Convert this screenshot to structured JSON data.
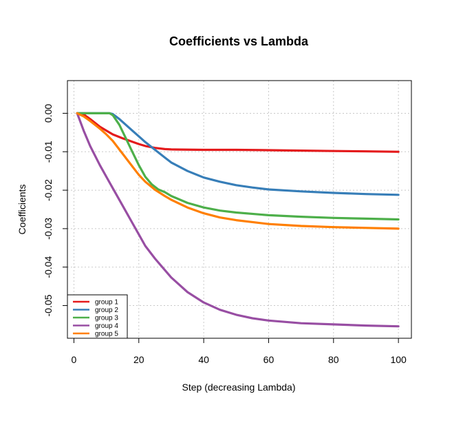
{
  "chart_data": {
    "type": "line",
    "title": "Coefficients vs Lambda",
    "xlabel": "Step (decreasing Lambda)",
    "ylabel": "Coefficients",
    "xlim": [
      -2,
      104
    ],
    "ylim": [
      -0.0585,
      0.0085
    ],
    "xticks": [
      0,
      20,
      40,
      60,
      80,
      100
    ],
    "yticks": [
      0.0,
      -0.01,
      -0.02,
      -0.03,
      -0.04,
      -0.05
    ],
    "xtick_labels": [
      "0",
      "20",
      "40",
      "60",
      "80",
      "100"
    ],
    "ytick_labels": [
      "0.00",
      "-0.01",
      "-0.02",
      "-0.03",
      "-0.04",
      "-0.05"
    ],
    "grid": true,
    "legend_position": "bottom-left",
    "series": [
      {
        "name": "group  1",
        "color": "#E41A1C",
        "x": [
          1,
          3,
          5,
          8,
          10,
          12,
          15,
          18,
          20,
          22,
          25,
          28,
          30,
          40,
          50,
          60,
          70,
          80,
          90,
          100
        ],
        "y": [
          0,
          -0.0003,
          -0.0015,
          -0.0035,
          -0.0045,
          -0.0055,
          -0.0065,
          -0.0074,
          -0.008,
          -0.0085,
          -0.009,
          -0.0093,
          -0.0094,
          -0.0095,
          -0.0095,
          -0.0096,
          -0.0097,
          -0.0098,
          -0.0099,
          -0.01
        ]
      },
      {
        "name": "group  2",
        "color": "#377EB8",
        "x": [
          1,
          11,
          12,
          14,
          16,
          18,
          20,
          22,
          25,
          28,
          30,
          35,
          40,
          45,
          50,
          55,
          60,
          70,
          80,
          90,
          100
        ],
        "y": [
          0,
          0,
          -0.0002,
          -0.0015,
          -0.003,
          -0.0045,
          -0.006,
          -0.0075,
          -0.0095,
          -0.0115,
          -0.0128,
          -0.015,
          -0.0167,
          -0.0178,
          -0.0187,
          -0.0193,
          -0.0198,
          -0.0203,
          -0.0207,
          -0.021,
          -0.0212
        ]
      },
      {
        "name": "group  3",
        "color": "#4DAF4A",
        "x": [
          1,
          11,
          12,
          14,
          16,
          18,
          20,
          22,
          24,
          26,
          28,
          30,
          35,
          40,
          45,
          50,
          60,
          70,
          80,
          90,
          100
        ],
        "y": [
          0,
          0,
          -0.0005,
          -0.003,
          -0.0065,
          -0.01,
          -0.0135,
          -0.0165,
          -0.0185,
          -0.0198,
          -0.0205,
          -0.0215,
          -0.0233,
          -0.0245,
          -0.0253,
          -0.0258,
          -0.0265,
          -0.0269,
          -0.0272,
          -0.0274,
          -0.0276
        ]
      },
      {
        "name": "group  4",
        "color": "#984EA3",
        "x": [
          1,
          3,
          5,
          8,
          10,
          12,
          15,
          18,
          20,
          22,
          25,
          30,
          35,
          40,
          45,
          50,
          55,
          60,
          70,
          80,
          90,
          100
        ],
        "y": [
          0,
          -0.0045,
          -0.0085,
          -0.0135,
          -0.0165,
          -0.0195,
          -0.024,
          -0.0285,
          -0.0315,
          -0.0345,
          -0.0378,
          -0.0427,
          -0.0465,
          -0.0492,
          -0.0511,
          -0.0524,
          -0.0533,
          -0.0539,
          -0.0546,
          -0.0549,
          -0.0552,
          -0.0554
        ]
      },
      {
        "name": "group  5",
        "color": "#FF7F00",
        "x": [
          1,
          3,
          5,
          8,
          10,
          12,
          15,
          18,
          20,
          22,
          25,
          28,
          30,
          35,
          40,
          45,
          50,
          60,
          70,
          80,
          90,
          100
        ],
        "y": [
          0,
          -0.0008,
          -0.002,
          -0.004,
          -0.0055,
          -0.0072,
          -0.0105,
          -0.0138,
          -0.016,
          -0.0178,
          -0.0199,
          -0.0215,
          -0.0225,
          -0.0245,
          -0.026,
          -0.0271,
          -0.0278,
          -0.0288,
          -0.0293,
          -0.0296,
          -0.0298,
          -0.03
        ]
      }
    ]
  }
}
